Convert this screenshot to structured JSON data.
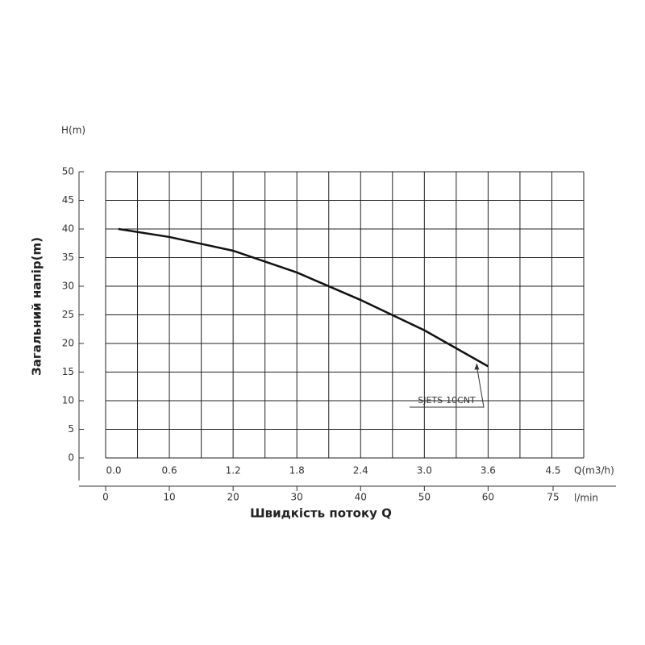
{
  "chart_data": {
    "type": "line",
    "y_label_top": "H(m)",
    "ylabel": "Загальний напір(m)",
    "xlabel": "Швидкість потоку Q",
    "x_unit": "l/min",
    "x2_unit": "Q(m3/h)",
    "x": [
      2,
      10,
      20,
      30,
      40,
      50,
      60
    ],
    "series": [
      {
        "name": "SJETS-10CNT",
        "color": "#111111",
        "values": [
          40,
          38.6,
          36.2,
          32.4,
          27.6,
          22.3,
          16
        ]
      }
    ],
    "xlim": [
      0,
      75
    ],
    "xticks": [
      0,
      10,
      20,
      30,
      40,
      50,
      60,
      75
    ],
    "x2lim": [
      0,
      4.5
    ],
    "x2ticks": [
      {
        "value": 0,
        "label": "0.0"
      },
      0.6,
      1.2,
      1.8,
      2.4,
      {
        "value": 3,
        "label": "3.0"
      },
      3.6,
      4.5
    ],
    "ylim": [
      0,
      50
    ],
    "yticks": [
      0,
      5,
      10,
      15,
      20,
      25,
      30,
      35,
      40,
      45,
      50
    ],
    "grid": true
  }
}
